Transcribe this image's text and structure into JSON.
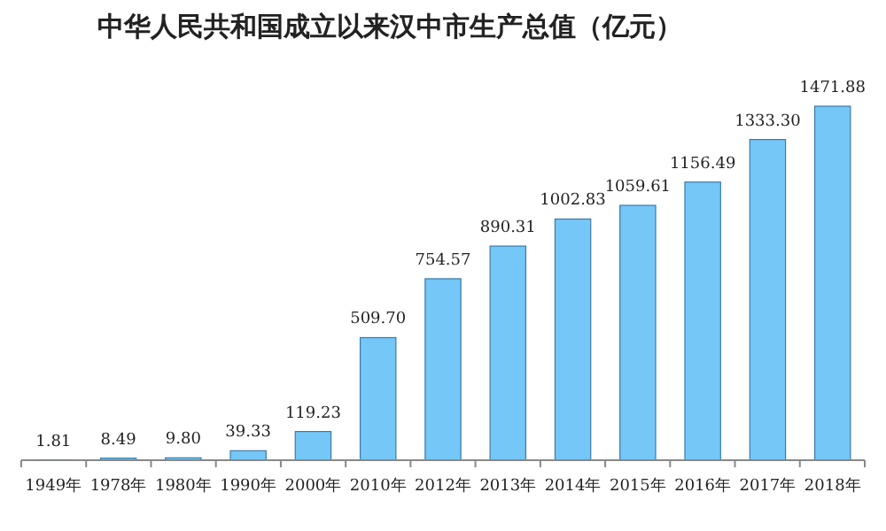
{
  "chart_data": {
    "type": "bar",
    "title": "中华人民共和国成立以来汉中市生产总值（亿元）",
    "categories": [
      "1949年",
      "1978年",
      "1980年",
      "1990年",
      "2000年",
      "2010年",
      "2012年",
      "2013年",
      "2014年",
      "2015年",
      "2016年",
      "2017年",
      "2018年"
    ],
    "values": [
      1.81,
      8.49,
      9.8,
      39.33,
      119.23,
      509.7,
      754.57,
      890.31,
      1002.83,
      1059.61,
      1156.49,
      1333.3,
      1471.88
    ],
    "value_labels": [
      "1.81",
      "8.49",
      "9.80",
      "39.33",
      "119.23",
      "509.70",
      "754.57",
      "890.31",
      "1002.83",
      "1059.61",
      "1156.49",
      "1333.30",
      "1471.88"
    ],
    "color": "#74c7f7"
  }
}
